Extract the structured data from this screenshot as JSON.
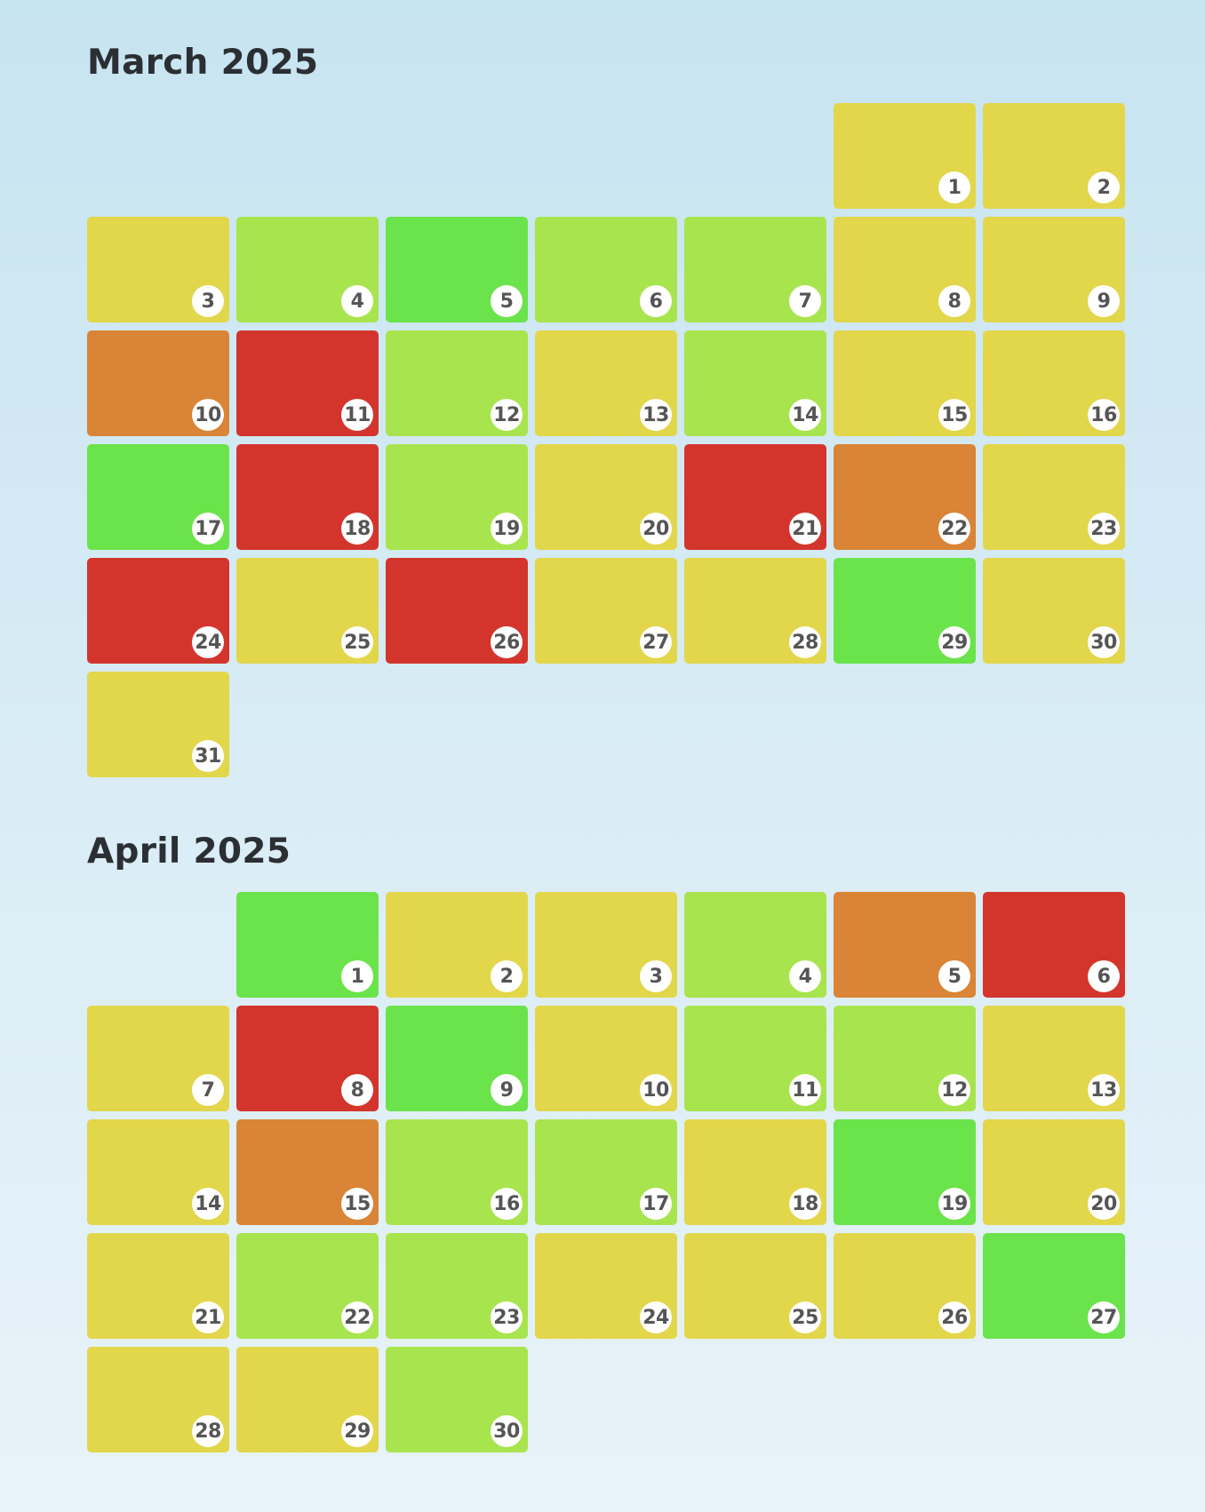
{
  "colors": {
    "green": "#6be34a",
    "lime": "#a8e44e",
    "yellow": "#e2d64b",
    "orange": "#d98436",
    "red": "#d3352c"
  },
  "months": [
    {
      "title": "March 2025",
      "start_weekday": 6,
      "days": [
        {
          "num": "1",
          "level": "yellow"
        },
        {
          "num": "2",
          "level": "yellow"
        },
        {
          "num": "3",
          "level": "yellow"
        },
        {
          "num": "4",
          "level": "lime"
        },
        {
          "num": "5",
          "level": "green"
        },
        {
          "num": "6",
          "level": "lime"
        },
        {
          "num": "7",
          "level": "lime"
        },
        {
          "num": "8",
          "level": "yellow"
        },
        {
          "num": "9",
          "level": "yellow"
        },
        {
          "num": "10",
          "level": "orange"
        },
        {
          "num": "11",
          "level": "red"
        },
        {
          "num": "12",
          "level": "lime"
        },
        {
          "num": "13",
          "level": "yellow"
        },
        {
          "num": "14",
          "level": "lime"
        },
        {
          "num": "15",
          "level": "yellow"
        },
        {
          "num": "16",
          "level": "yellow"
        },
        {
          "num": "17",
          "level": "green"
        },
        {
          "num": "18",
          "level": "red"
        },
        {
          "num": "19",
          "level": "lime"
        },
        {
          "num": "20",
          "level": "yellow"
        },
        {
          "num": "21",
          "level": "red"
        },
        {
          "num": "22",
          "level": "orange"
        },
        {
          "num": "23",
          "level": "yellow"
        },
        {
          "num": "24",
          "level": "red"
        },
        {
          "num": "25",
          "level": "yellow"
        },
        {
          "num": "26",
          "level": "red"
        },
        {
          "num": "27",
          "level": "yellow"
        },
        {
          "num": "28",
          "level": "yellow"
        },
        {
          "num": "29",
          "level": "green"
        },
        {
          "num": "30",
          "level": "yellow"
        },
        {
          "num": "31",
          "level": "yellow"
        }
      ]
    },
    {
      "title": "April 2025",
      "start_weekday": 2,
      "days": [
        {
          "num": "1",
          "level": "green"
        },
        {
          "num": "2",
          "level": "yellow"
        },
        {
          "num": "3",
          "level": "yellow"
        },
        {
          "num": "4",
          "level": "lime"
        },
        {
          "num": "5",
          "level": "orange"
        },
        {
          "num": "6",
          "level": "red"
        },
        {
          "num": "7",
          "level": "yellow"
        },
        {
          "num": "8",
          "level": "red"
        },
        {
          "num": "9",
          "level": "green"
        },
        {
          "num": "10",
          "level": "yellow"
        },
        {
          "num": "11",
          "level": "lime"
        },
        {
          "num": "12",
          "level": "lime"
        },
        {
          "num": "13",
          "level": "yellow"
        },
        {
          "num": "14",
          "level": "yellow"
        },
        {
          "num": "15",
          "level": "orange"
        },
        {
          "num": "16",
          "level": "lime"
        },
        {
          "num": "17",
          "level": "lime"
        },
        {
          "num": "18",
          "level": "yellow"
        },
        {
          "num": "19",
          "level": "green"
        },
        {
          "num": "20",
          "level": "yellow"
        },
        {
          "num": "21",
          "level": "yellow"
        },
        {
          "num": "22",
          "level": "lime"
        },
        {
          "num": "23",
          "level": "lime"
        },
        {
          "num": "24",
          "level": "yellow"
        },
        {
          "num": "25",
          "level": "yellow"
        },
        {
          "num": "26",
          "level": "yellow"
        },
        {
          "num": "27",
          "level": "green"
        },
        {
          "num": "28",
          "level": "yellow"
        },
        {
          "num": "29",
          "level": "yellow"
        },
        {
          "num": "30",
          "level": "lime"
        }
      ]
    }
  ]
}
